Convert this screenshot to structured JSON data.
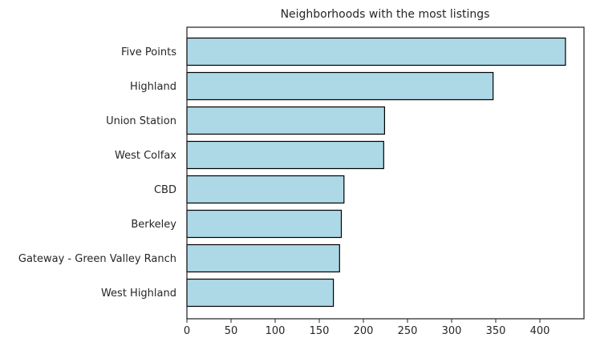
{
  "chart_data": {
    "type": "bar",
    "orientation": "horizontal",
    "title": "Neighborhoods with the most listings",
    "xlabel": "",
    "ylabel": "",
    "categories": [
      "Five Points",
      "Highland",
      "Union Station",
      "West Colfax",
      "CBD",
      "Berkeley",
      "Gateway - Green Valley Ranch",
      "West Highland"
    ],
    "values": [
      429,
      347,
      224,
      223,
      178,
      175,
      173,
      166
    ],
    "xlim": [
      0,
      450
    ],
    "xticks": [
      0,
      50,
      100,
      150,
      200,
      250,
      300,
      350,
      400
    ],
    "xtick_labels": [
      "0",
      "50",
      "100",
      "150",
      "200",
      "250",
      "300",
      "350",
      "400"
    ],
    "grid": false,
    "bar_color": "#add8e6",
    "edge_color": "#000000"
  }
}
